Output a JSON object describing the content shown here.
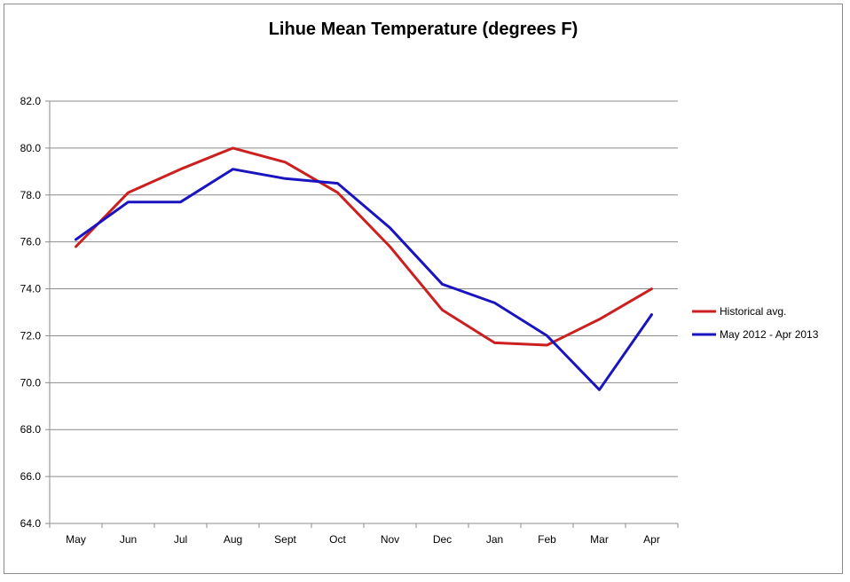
{
  "chart_data": {
    "type": "line",
    "title": "Lihue Mean Temperature (degrees F)",
    "xlabel": "",
    "ylabel": "",
    "categories": [
      "May",
      "Jun",
      "Jul",
      "Aug",
      "Sept",
      "Oct",
      "Nov",
      "Dec",
      "Jan",
      "Feb",
      "Mar",
      "Apr"
    ],
    "ylim": [
      64.0,
      82.0
    ],
    "yticks": [
      "64.0",
      "66.0",
      "68.0",
      "70.0",
      "72.0",
      "74.0",
      "76.0",
      "78.0",
      "80.0",
      "82.0"
    ],
    "grid": true,
    "legend_position": "right",
    "series": [
      {
        "name": "Historical avg.",
        "color": "#cc1f1f",
        "values": [
          75.8,
          78.1,
          79.1,
          80.0,
          79.4,
          78.1,
          75.8,
          73.1,
          71.7,
          71.6,
          72.7,
          74.0
        ]
      },
      {
        "name": "May 2012 - Apr 2013",
        "color": "#1a14c0",
        "values": [
          76.1,
          77.7,
          77.7,
          79.1,
          78.7,
          78.5,
          76.6,
          74.2,
          73.4,
          72.0,
          69.7,
          72.9
        ]
      }
    ]
  }
}
